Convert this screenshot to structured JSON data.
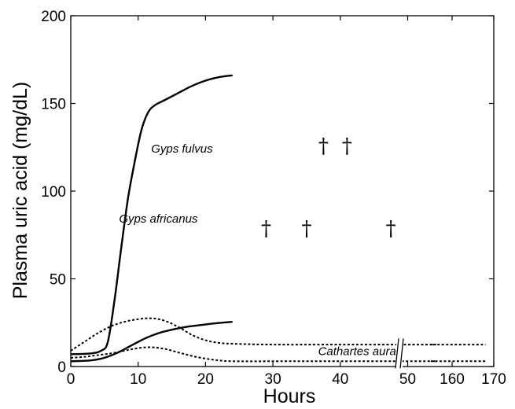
{
  "chart_data": {
    "type": "line",
    "title": "",
    "xlabel": "Hours",
    "ylabel": "Plasma uric acid (mg/dL)",
    "ylim": [
      0,
      200
    ],
    "x_ticks": [
      "0",
      "10",
      "20",
      "30",
      "40",
      "50",
      "160",
      "170"
    ],
    "y_ticks": [
      "0",
      "50",
      "100",
      "150",
      "200"
    ],
    "x_axis_break": "between 54 and 155 hours",
    "grid": false,
    "legend": "none",
    "series": [
      {
        "name": "Gyps fulvus",
        "style": "solid",
        "x": [
          0,
          3,
          4.5,
          5.5,
          6.5,
          7.5,
          8.5,
          9.5,
          10.5,
          11.5,
          12.5,
          14,
          16,
          18,
          20,
          22,
          24
        ],
        "values": [
          7,
          7.5,
          9,
          14,
          38,
          68,
          96,
          117,
          135,
          145,
          149,
          152,
          156,
          160,
          163,
          165,
          166
        ]
      },
      {
        "name": "Gyps africanus",
        "style": "solid",
        "x": [
          0,
          3,
          5,
          7,
          9,
          11,
          13,
          15,
          17,
          19,
          21,
          24
        ],
        "values": [
          3,
          3.5,
          5,
          8,
          12,
          16,
          19,
          21,
          22.5,
          23.5,
          24.5,
          25.5
        ]
      },
      {
        "name": "Cathartes aura",
        "style": "dotted",
        "x": [
          0,
          2,
          4,
          6,
          8,
          10,
          12,
          14,
          16,
          18,
          20,
          22,
          24,
          30,
          40,
          50,
          54,
          155,
          160,
          168
        ],
        "values": [
          9,
          14,
          19,
          23,
          25.5,
          27,
          27.5,
          26,
          22.5,
          18,
          15,
          13.5,
          13,
          12.5,
          12.5,
          12.5,
          12.5,
          12.5,
          12.5,
          12.5
        ]
      },
      {
        "name": "Cathartes aura (lower)",
        "style": "dotted",
        "x": [
          0,
          2,
          4,
          6,
          8,
          10,
          12,
          14,
          16,
          18,
          20,
          22,
          24,
          30,
          40,
          50,
          54,
          155,
          160,
          168
        ],
        "values": [
          5,
          5.5,
          6.5,
          7.5,
          9,
          10.5,
          11,
          10,
          8,
          6,
          4.5,
          3.5,
          3,
          3,
          3,
          3,
          3,
          3,
          3,
          3
        ]
      }
    ],
    "annotations": [
      {
        "text": "Gyps fulvus",
        "x": 16.5,
        "y": 122
      },
      {
        "text": "Gyps africanus",
        "x": 13,
        "y": 82
      },
      {
        "text": "Cathartes aura",
        "x": 42.5,
        "y": 6.5
      }
    ],
    "mortality_markers": {
      "symbol": "†",
      "points": [
        {
          "x": 37.5,
          "y": 126
        },
        {
          "x": 41,
          "y": 126
        },
        {
          "x": 29,
          "y": 79
        },
        {
          "x": 35,
          "y": 79
        },
        {
          "x": 47.5,
          "y": 79
        }
      ]
    }
  }
}
